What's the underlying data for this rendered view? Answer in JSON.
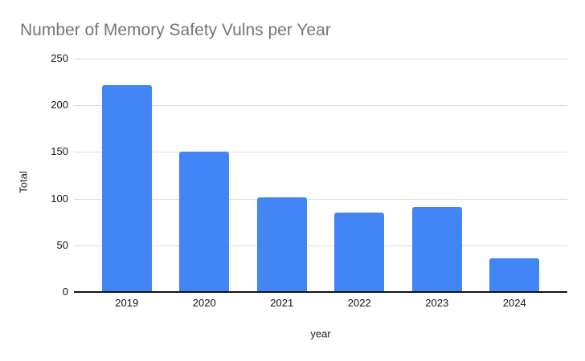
{
  "chart_data": {
    "type": "bar",
    "title": "Number of Memory Safety Vulns per Year",
    "xlabel": "year",
    "ylabel": "Total",
    "categories": [
      "2019",
      "2020",
      "2021",
      "2022",
      "2023",
      "2024"
    ],
    "values": [
      222,
      150,
      101,
      85,
      91,
      36
    ],
    "ylim": [
      0,
      250
    ],
    "yticks": [
      0,
      50,
      100,
      150,
      200,
      250
    ],
    "grid": true,
    "legend_position": "none",
    "bar_color": "#4285f4",
    "colors": {
      "title": "#757575",
      "tick_label": "#111111",
      "gridline": "#dadada",
      "axis_line": "#111111",
      "background": "#ffffff"
    }
  }
}
